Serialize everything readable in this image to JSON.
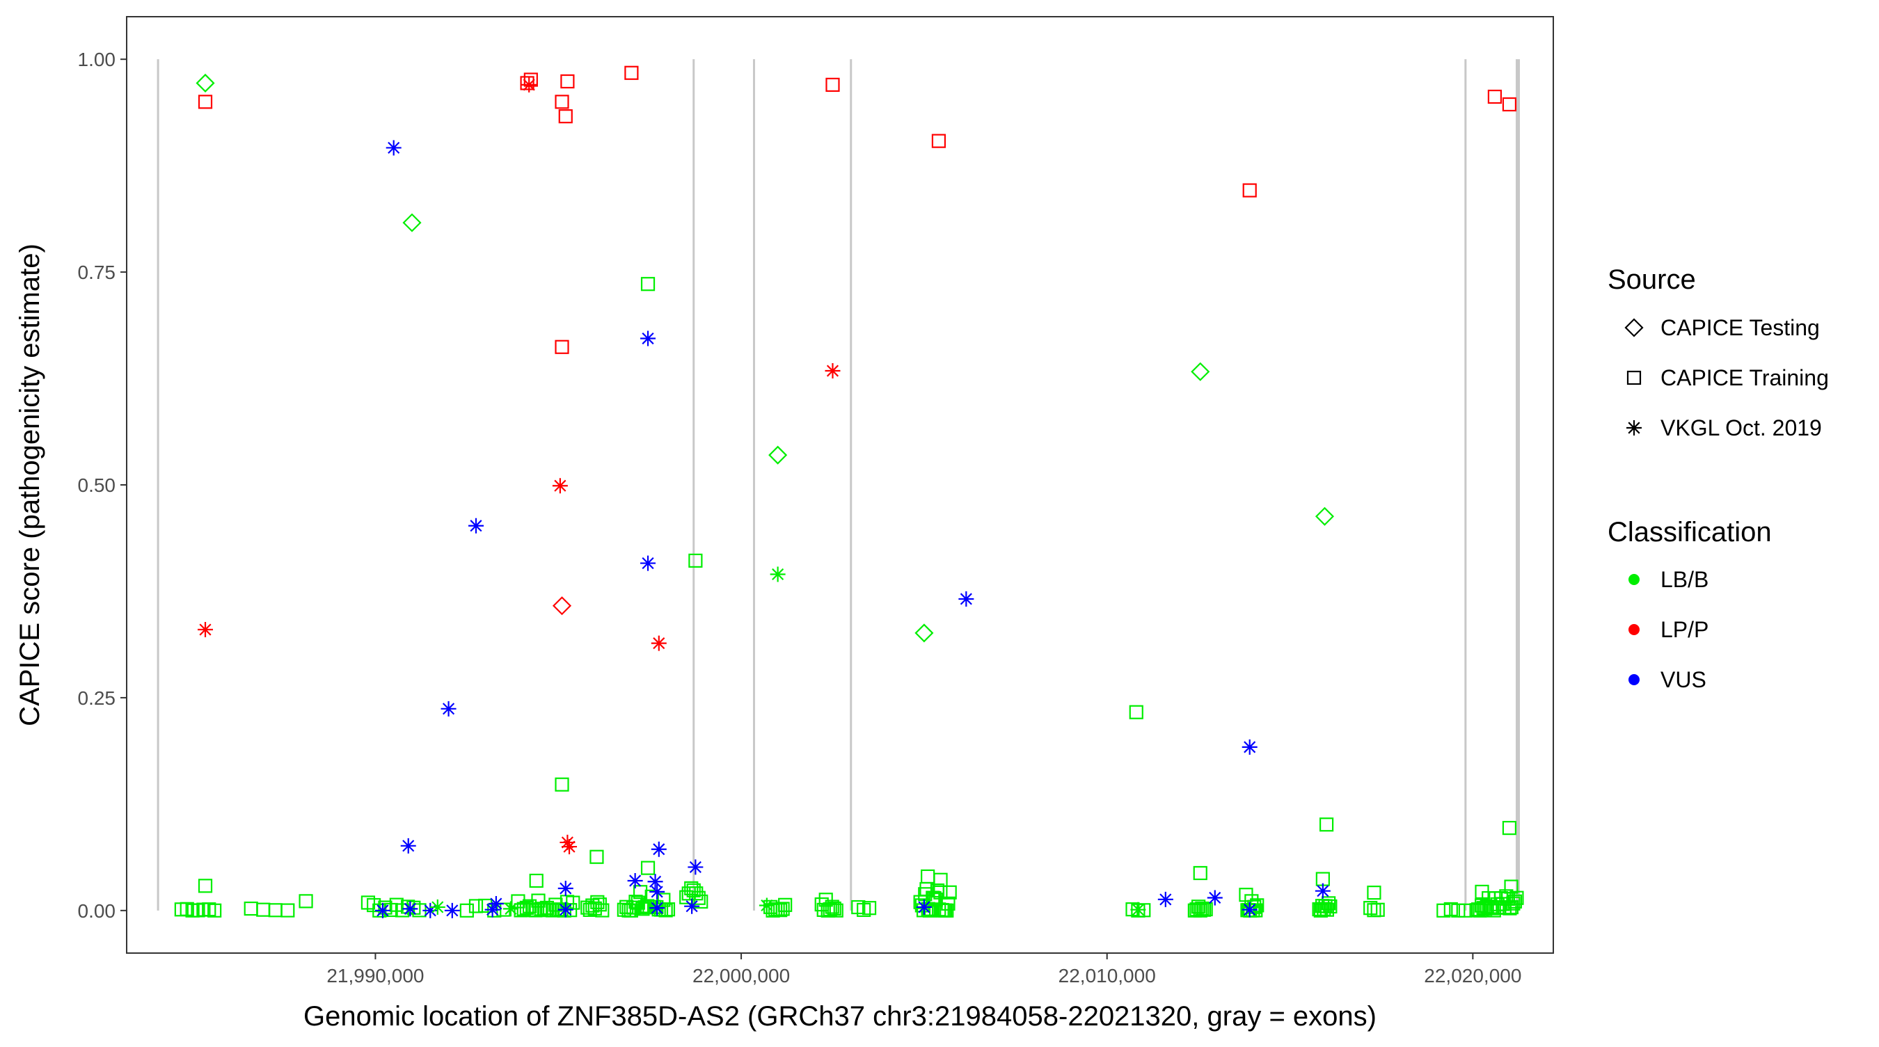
{
  "chart_data": {
    "type": "scatter",
    "xlabel": "Genomic location of ZNF385D-AS2 (GRCh37 chr3:21984058-22021320, gray = exons)",
    "ylabel": "CAPICE score (pathogenicity estimate)",
    "xlim": [
      21983200,
      22022200
    ],
    "ylim": [
      -0.05,
      1.05
    ],
    "x_ticks": [
      21990000,
      22000000,
      22010000,
      22020000
    ],
    "x_tick_labels": [
      "21,990,000",
      "22,000,000",
      "22,010,000",
      "22,020,000"
    ],
    "y_ticks": [
      0,
      0.25,
      0.5,
      0.75,
      1.0
    ],
    "y_tick_labels": [
      "0.00",
      "0.25",
      "0.50",
      "0.75",
      "1.00"
    ],
    "grid": false,
    "legend_position": "right",
    "exon_lines": [
      {
        "x": 21984058,
        "w": 1
      },
      {
        "x": 21998700,
        "w": 1
      },
      {
        "x": 22000350,
        "w": 1
      },
      {
        "x": 22003000,
        "w": 1
      },
      {
        "x": 22019800,
        "w": 1
      },
      {
        "x": 22021230,
        "w": 2
      }
    ],
    "legends": {
      "source": {
        "title": "Source",
        "items": [
          {
            "label": "CAPICE Testing",
            "shape": "diamond"
          },
          {
            "label": "CAPICE Training",
            "shape": "square"
          },
          {
            "label": "VKGL Oct. 2019",
            "shape": "asterisk"
          }
        ]
      },
      "classification": {
        "title": "Classification",
        "items": [
          {
            "label": "LB/B",
            "color": "#00ee00"
          },
          {
            "label": "LP/P",
            "color": "#ff0000"
          },
          {
            "label": "VUS",
            "color": "#0000ff"
          }
        ]
      }
    },
    "colors": {
      "LB/B": "#00ee00",
      "LP/P": "#ff0000",
      "VUS": "#0000ff"
    },
    "points": [
      {
        "x": 21985350,
        "y": 0.972,
        "s": "diamond",
        "c": "LB/B"
      },
      {
        "x": 21985350,
        "y": 0.95,
        "s": "square",
        "c": "LP/P"
      },
      {
        "x": 21985350,
        "y": 0.33,
        "s": "asterisk",
        "c": "LP/P"
      },
      {
        "x": 21990500,
        "y": 0.896,
        "s": "asterisk",
        "c": "VUS"
      },
      {
        "x": 21991000,
        "y": 0.808,
        "s": "diamond",
        "c": "LB/B"
      },
      {
        "x": 21994150,
        "y": 0.972,
        "s": "square",
        "c": "LP/P"
      },
      {
        "x": 21994250,
        "y": 0.976,
        "s": "square",
        "c": "LP/P"
      },
      {
        "x": 21994200,
        "y": 0.97,
        "s": "asterisk",
        "c": "LP/P"
      },
      {
        "x": 21995100,
        "y": 0.95,
        "s": "square",
        "c": "LP/P"
      },
      {
        "x": 21995200,
        "y": 0.933,
        "s": "square",
        "c": "LP/P"
      },
      {
        "x": 21995250,
        "y": 0.974,
        "s": "square",
        "c": "LP/P"
      },
      {
        "x": 21997000,
        "y": 0.984,
        "s": "square",
        "c": "LP/P"
      },
      {
        "x": 21997450,
        "y": 0.736,
        "s": "square",
        "c": "LB/B"
      },
      {
        "x": 21997450,
        "y": 0.672,
        "s": "asterisk",
        "c": "VUS"
      },
      {
        "x": 21995100,
        "y": 0.662,
        "s": "square",
        "c": "LP/P"
      },
      {
        "x": 21995050,
        "y": 0.499,
        "s": "asterisk",
        "c": "LP/P"
      },
      {
        "x": 21992750,
        "y": 0.452,
        "s": "asterisk",
        "c": "VUS"
      },
      {
        "x": 21997450,
        "y": 0.408,
        "s": "asterisk",
        "c": "VUS"
      },
      {
        "x": 21998750,
        "y": 0.411,
        "s": "square",
        "c": "LB/B"
      },
      {
        "x": 21995100,
        "y": 0.358,
        "s": "diamond",
        "c": "LP/P"
      },
      {
        "x": 21997750,
        "y": 0.314,
        "s": "asterisk",
        "c": "LP/P"
      },
      {
        "x": 21992000,
        "y": 0.237,
        "s": "asterisk",
        "c": "VUS"
      },
      {
        "x": 21995100,
        "y": 0.148,
        "s": "square",
        "c": "LB/B"
      },
      {
        "x": 21990900,
        "y": 0.076,
        "s": "asterisk",
        "c": "VUS"
      },
      {
        "x": 21995250,
        "y": 0.08,
        "s": "asterisk",
        "c": "LP/P"
      },
      {
        "x": 21995300,
        "y": 0.075,
        "s": "asterisk",
        "c": "LP/P"
      },
      {
        "x": 21996050,
        "y": 0.063,
        "s": "square",
        "c": "LB/B"
      },
      {
        "x": 21997750,
        "y": 0.072,
        "s": "asterisk",
        "c": "VUS"
      },
      {
        "x": 21998750,
        "y": 0.051,
        "s": "asterisk",
        "c": "VUS"
      },
      {
        "x": 21997450,
        "y": 0.05,
        "s": "square",
        "c": "LB/B"
      },
      {
        "x": 21997100,
        "y": 0.035,
        "s": "asterisk",
        "c": "VUS"
      },
      {
        "x": 21997650,
        "y": 0.034,
        "s": "asterisk",
        "c": "VUS"
      },
      {
        "x": 21994400,
        "y": 0.035,
        "s": "square",
        "c": "LB/B"
      },
      {
        "x": 21995200,
        "y": 0.026,
        "s": "asterisk",
        "c": "VUS"
      },
      {
        "x": 21997700,
        "y": 0.022,
        "s": "asterisk",
        "c": "VUS"
      },
      {
        "x": 21985350,
        "y": 0.029,
        "s": "square",
        "c": "LB/B"
      },
      {
        "x": 21988100,
        "y": 0.011,
        "s": "square",
        "c": "LB/B"
      },
      {
        "x": 21993300,
        "y": 0.008,
        "s": "asterisk",
        "c": "VUS"
      },
      {
        "x": 21998650,
        "y": 0.005,
        "s": "asterisk",
        "c": "VUS"
      },
      {
        "x": 22001000,
        "y": 0.535,
        "s": "diamond",
        "c": "LB/B"
      },
      {
        "x": 22001000,
        "y": 0.395,
        "s": "asterisk",
        "c": "LB/B"
      },
      {
        "x": 22002500,
        "y": 0.97,
        "s": "square",
        "c": "LP/P"
      },
      {
        "x": 22002500,
        "y": 0.634,
        "s": "asterisk",
        "c": "LP/P"
      },
      {
        "x": 22005400,
        "y": 0.904,
        "s": "square",
        "c": "LP/P"
      },
      {
        "x": 22005000,
        "y": 0.326,
        "s": "diamond",
        "c": "LB/B"
      },
      {
        "x": 22006150,
        "y": 0.366,
        "s": "asterisk",
        "c": "VUS"
      },
      {
        "x": 22005100,
        "y": 0.04,
        "s": "square",
        "c": "LB/B"
      },
      {
        "x": 22005450,
        "y": 0.036,
        "s": "square",
        "c": "LB/B"
      },
      {
        "x": 22005000,
        "y": 0.004,
        "s": "asterisk",
        "c": "VUS"
      },
      {
        "x": 22010800,
        "y": 0.233,
        "s": "square",
        "c": "LB/B"
      },
      {
        "x": 22012550,
        "y": 0.633,
        "s": "diamond",
        "c": "LB/B"
      },
      {
        "x": 22013900,
        "y": 0.846,
        "s": "square",
        "c": "LP/P"
      },
      {
        "x": 22013900,
        "y": 0.192,
        "s": "asterisk",
        "c": "VUS"
      },
      {
        "x": 22015950,
        "y": 0.463,
        "s": "diamond",
        "c": "LB/B"
      },
      {
        "x": 22016000,
        "y": 0.101,
        "s": "square",
        "c": "LB/B"
      },
      {
        "x": 22012550,
        "y": 0.044,
        "s": "square",
        "c": "LB/B"
      },
      {
        "x": 22015900,
        "y": 0.037,
        "s": "square",
        "c": "LB/B"
      },
      {
        "x": 22011600,
        "y": 0.013,
        "s": "asterisk",
        "c": "VUS"
      },
      {
        "x": 22012950,
        "y": 0.015,
        "s": "asterisk",
        "c": "VUS"
      },
      {
        "x": 22015900,
        "y": 0.023,
        "s": "asterisk",
        "c": "VUS"
      },
      {
        "x": 22017300,
        "y": 0.021,
        "s": "square",
        "c": "LB/B"
      },
      {
        "x": 22013900,
        "y": 0.001,
        "s": "asterisk",
        "c": "VUS"
      },
      {
        "x": 22020600,
        "y": 0.956,
        "s": "square",
        "c": "LP/P"
      },
      {
        "x": 22021000,
        "y": 0.947,
        "s": "square",
        "c": "LP/P"
      },
      {
        "x": 22021000,
        "y": 0.097,
        "s": "square",
        "c": "LB/B"
      },
      {
        "x": 22021050,
        "y": 0.028,
        "s": "square",
        "c": "LB/B"
      },
      {
        "x": 22020250,
        "y": 0.022,
        "s": "square",
        "c": "LB/B"
      },
      {
        "x": 21990200,
        "y": 0.0,
        "s": "asterisk",
        "c": "VUS"
      },
      {
        "x": 21990950,
        "y": 0.002,
        "s": "asterisk",
        "c": "VUS"
      },
      {
        "x": 21991500,
        "y": 0.0,
        "s": "asterisk",
        "c": "VUS"
      },
      {
        "x": 21992100,
        "y": 0.0,
        "s": "asterisk",
        "c": "VUS"
      },
      {
        "x": 21993200,
        "y": 0.001,
        "s": "asterisk",
        "c": "VUS"
      },
      {
        "x": 21995200,
        "y": 0.001,
        "s": "asterisk",
        "c": "VUS"
      },
      {
        "x": 21997700,
        "y": 0.003,
        "s": "asterisk",
        "c": "VUS"
      },
      {
        "x": 21991700,
        "y": 0.004,
        "s": "asterisk",
        "c": "LB/B"
      },
      {
        "x": 21993700,
        "y": 0.002,
        "s": "asterisk",
        "c": "LB/B"
      },
      {
        "x": 22000700,
        "y": 0.006,
        "s": "asterisk",
        "c": "LB/B"
      },
      {
        "x": 22010850,
        "y": 0.001,
        "s": "asterisk",
        "c": "LB/B"
      }
    ],
    "bottom_clusters": [
      {
        "from": 21984700,
        "to": 21985600,
        "n": 7,
        "max": 0.006
      },
      {
        "from": 21986600,
        "to": 21987600,
        "n": 4,
        "max": 0.003
      },
      {
        "from": 21989800,
        "to": 21991200,
        "n": 10,
        "max": 0.016
      },
      {
        "from": 21992500,
        "to": 21993500,
        "n": 5,
        "max": 0.006
      },
      {
        "from": 21993900,
        "to": 21995400,
        "n": 20,
        "max": 0.012
      },
      {
        "from": 21995800,
        "to": 21996200,
        "n": 7,
        "max": 0.018
      },
      {
        "from": 21996800,
        "to": 21998000,
        "n": 20,
        "max": 0.024
      },
      {
        "from": 21998500,
        "to": 21998900,
        "n": 7,
        "max": 0.028
      },
      {
        "from": 22000800,
        "to": 22001200,
        "n": 7,
        "max": 0.015
      },
      {
        "from": 22002200,
        "to": 22002600,
        "n": 8,
        "max": 0.014
      },
      {
        "from": 22003200,
        "to": 22003500,
        "n": 3,
        "max": 0.004
      },
      {
        "from": 22004900,
        "to": 22005700,
        "n": 20,
        "max": 0.032
      },
      {
        "from": 22010700,
        "to": 22011000,
        "n": 3,
        "max": 0.002
      },
      {
        "from": 22012400,
        "to": 22012700,
        "n": 7,
        "max": 0.022
      },
      {
        "from": 22013800,
        "to": 22014100,
        "n": 9,
        "max": 0.031
      },
      {
        "from": 22015800,
        "to": 22016100,
        "n": 8,
        "max": 0.01
      },
      {
        "from": 22017200,
        "to": 22017400,
        "n": 3,
        "max": 0.008
      },
      {
        "from": 22019200,
        "to": 22019800,
        "n": 4,
        "max": 0.002
      },
      {
        "from": 22020100,
        "to": 22021200,
        "n": 24,
        "max": 0.018
      }
    ]
  }
}
